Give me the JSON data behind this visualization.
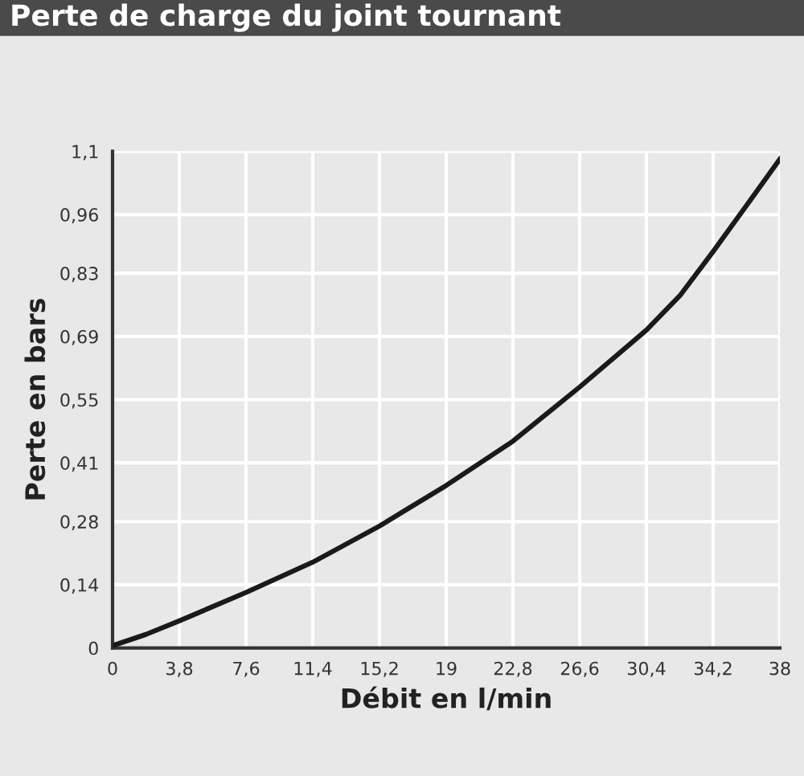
{
  "chart_data": {
    "type": "line",
    "title": "Perte de charge du joint tournant",
    "xlabel": "Débit en l/min",
    "ylabel": "Perte en bars",
    "x": [
      0,
      1.9,
      3.8,
      7.6,
      11.4,
      15.2,
      19,
      22.8,
      26.6,
      30.4,
      32.3,
      34.2,
      36.1,
      38
    ],
    "series": [
      {
        "color": "#1a1a1a",
        "values": [
          0.005,
          0.03,
          0.06,
          0.123,
          0.19,
          0.27,
          0.36,
          0.458,
          0.578,
          0.704,
          0.78,
          0.878,
          0.98,
          1.083
        ]
      }
    ],
    "xlim": [
      0,
      38
    ],
    "ylim": [
      0,
      1.1
    ],
    "xticks": [
      0,
      {
        "value": 3.8,
        "label": "3,8"
      },
      {
        "value": 7.6,
        "label": "7,6"
      },
      {
        "value": 11.4,
        "label": "11,4"
      },
      {
        "value": 15.2,
        "label": "15,2"
      },
      19,
      {
        "value": 22.8,
        "label": "22,8"
      },
      {
        "value": 26.6,
        "label": "26,6"
      },
      {
        "value": 30.4,
        "label": "30,4"
      },
      {
        "value": 34.2,
        "label": "34,2"
      },
      38
    ],
    "yticks": [
      0,
      {
        "value": 0.14,
        "label": "0,14"
      },
      {
        "value": 0.28,
        "label": "0,28"
      },
      {
        "value": 0.41,
        "label": "0,41"
      },
      {
        "value": 0.55,
        "label": "0,55"
      },
      {
        "value": 0.69,
        "label": "0,69"
      },
      {
        "value": 0.83,
        "label": "0,83"
      },
      {
        "value": 0.96,
        "label": "0,96"
      },
      {
        "value": 1.1,
        "label": "1,1"
      }
    ],
    "grid": true,
    "marker": "none",
    "line_style": "solid"
  }
}
